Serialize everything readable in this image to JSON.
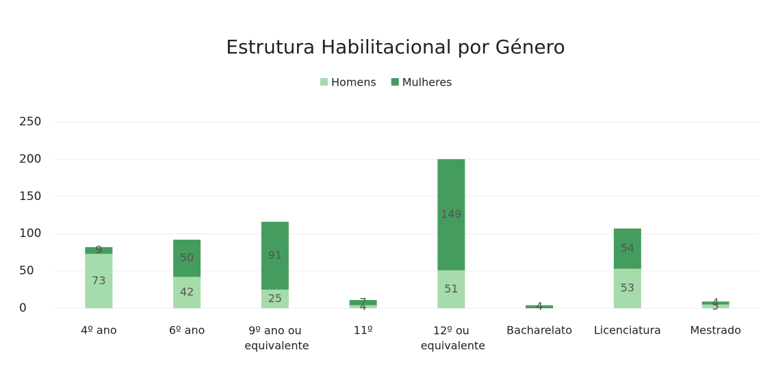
{
  "chart_data": {
    "type": "stacked-bar",
    "title": "Estrutura Habilitacional por Género",
    "categories": [
      "4º ano",
      "6º ano",
      "9º ano ou equivalente",
      "11º",
      "12º ou equivalente",
      "Bacharelato",
      "Licenciatura",
      "Mestrado"
    ],
    "series": [
      {
        "name": "Homens",
        "color": "#a6dbab",
        "values": [
          73,
          42,
          25,
          4,
          51,
          null,
          53,
          5
        ]
      },
      {
        "name": "Mulheres",
        "color": "#449d5e",
        "values": [
          9,
          50,
          91,
          7,
          149,
          4,
          54,
          4
        ]
      }
    ],
    "ylim": [
      0,
      250
    ],
    "yticks": [
      0,
      50,
      100,
      150,
      200,
      250
    ],
    "grid": true,
    "legend": "top"
  }
}
